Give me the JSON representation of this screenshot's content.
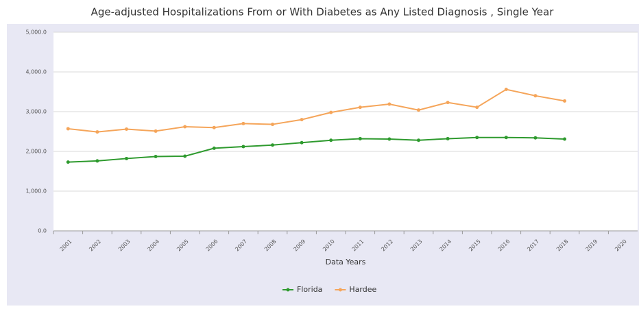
{
  "chart_data": {
    "type": "line",
    "title": "Age-adjusted Hospitalizations From or With Diabetes as Any Listed Diagnosis , Single Year",
    "x_label": "Data Years",
    "categories": [
      "2001",
      "2002",
      "2003",
      "2004",
      "2005",
      "2006",
      "2007",
      "2008",
      "2009",
      "2010",
      "2011",
      "2012",
      "2013",
      "2014",
      "2015",
      "2016",
      "2017",
      "2018",
      "2019",
      "2020"
    ],
    "series": [
      {
        "name": "Florida",
        "color": "#2e9a2e",
        "values": [
          1730,
          1760,
          1820,
          1870,
          1880,
          2080,
          2120,
          2160,
          2220,
          2280,
          2320,
          2310,
          2280,
          2320,
          2350,
          2350,
          2340,
          2310,
          null,
          null
        ]
      },
      {
        "name": "Hardee",
        "color": "#f5a55a",
        "values": [
          2570,
          2490,
          2560,
          2510,
          2620,
          2600,
          2700,
          2680,
          2800,
          2980,
          3110,
          3190,
          3040,
          3230,
          3110,
          3560,
          3400,
          3270,
          null,
          null
        ]
      }
    ],
    "ylim": [
      0,
      5000
    ],
    "yticks": [
      {
        "value": 0,
        "label": "0.0"
      },
      {
        "value": 1000,
        "label": "1,000.0"
      },
      {
        "value": 2000,
        "label": "2,000.0"
      },
      {
        "value": 3000,
        "label": "3,000.0"
      },
      {
        "value": 4000,
        "label": "4,000.0"
      },
      {
        "value": 5000,
        "label": "5,000.0"
      }
    ],
    "grid": true,
    "legend": "bottom"
  }
}
